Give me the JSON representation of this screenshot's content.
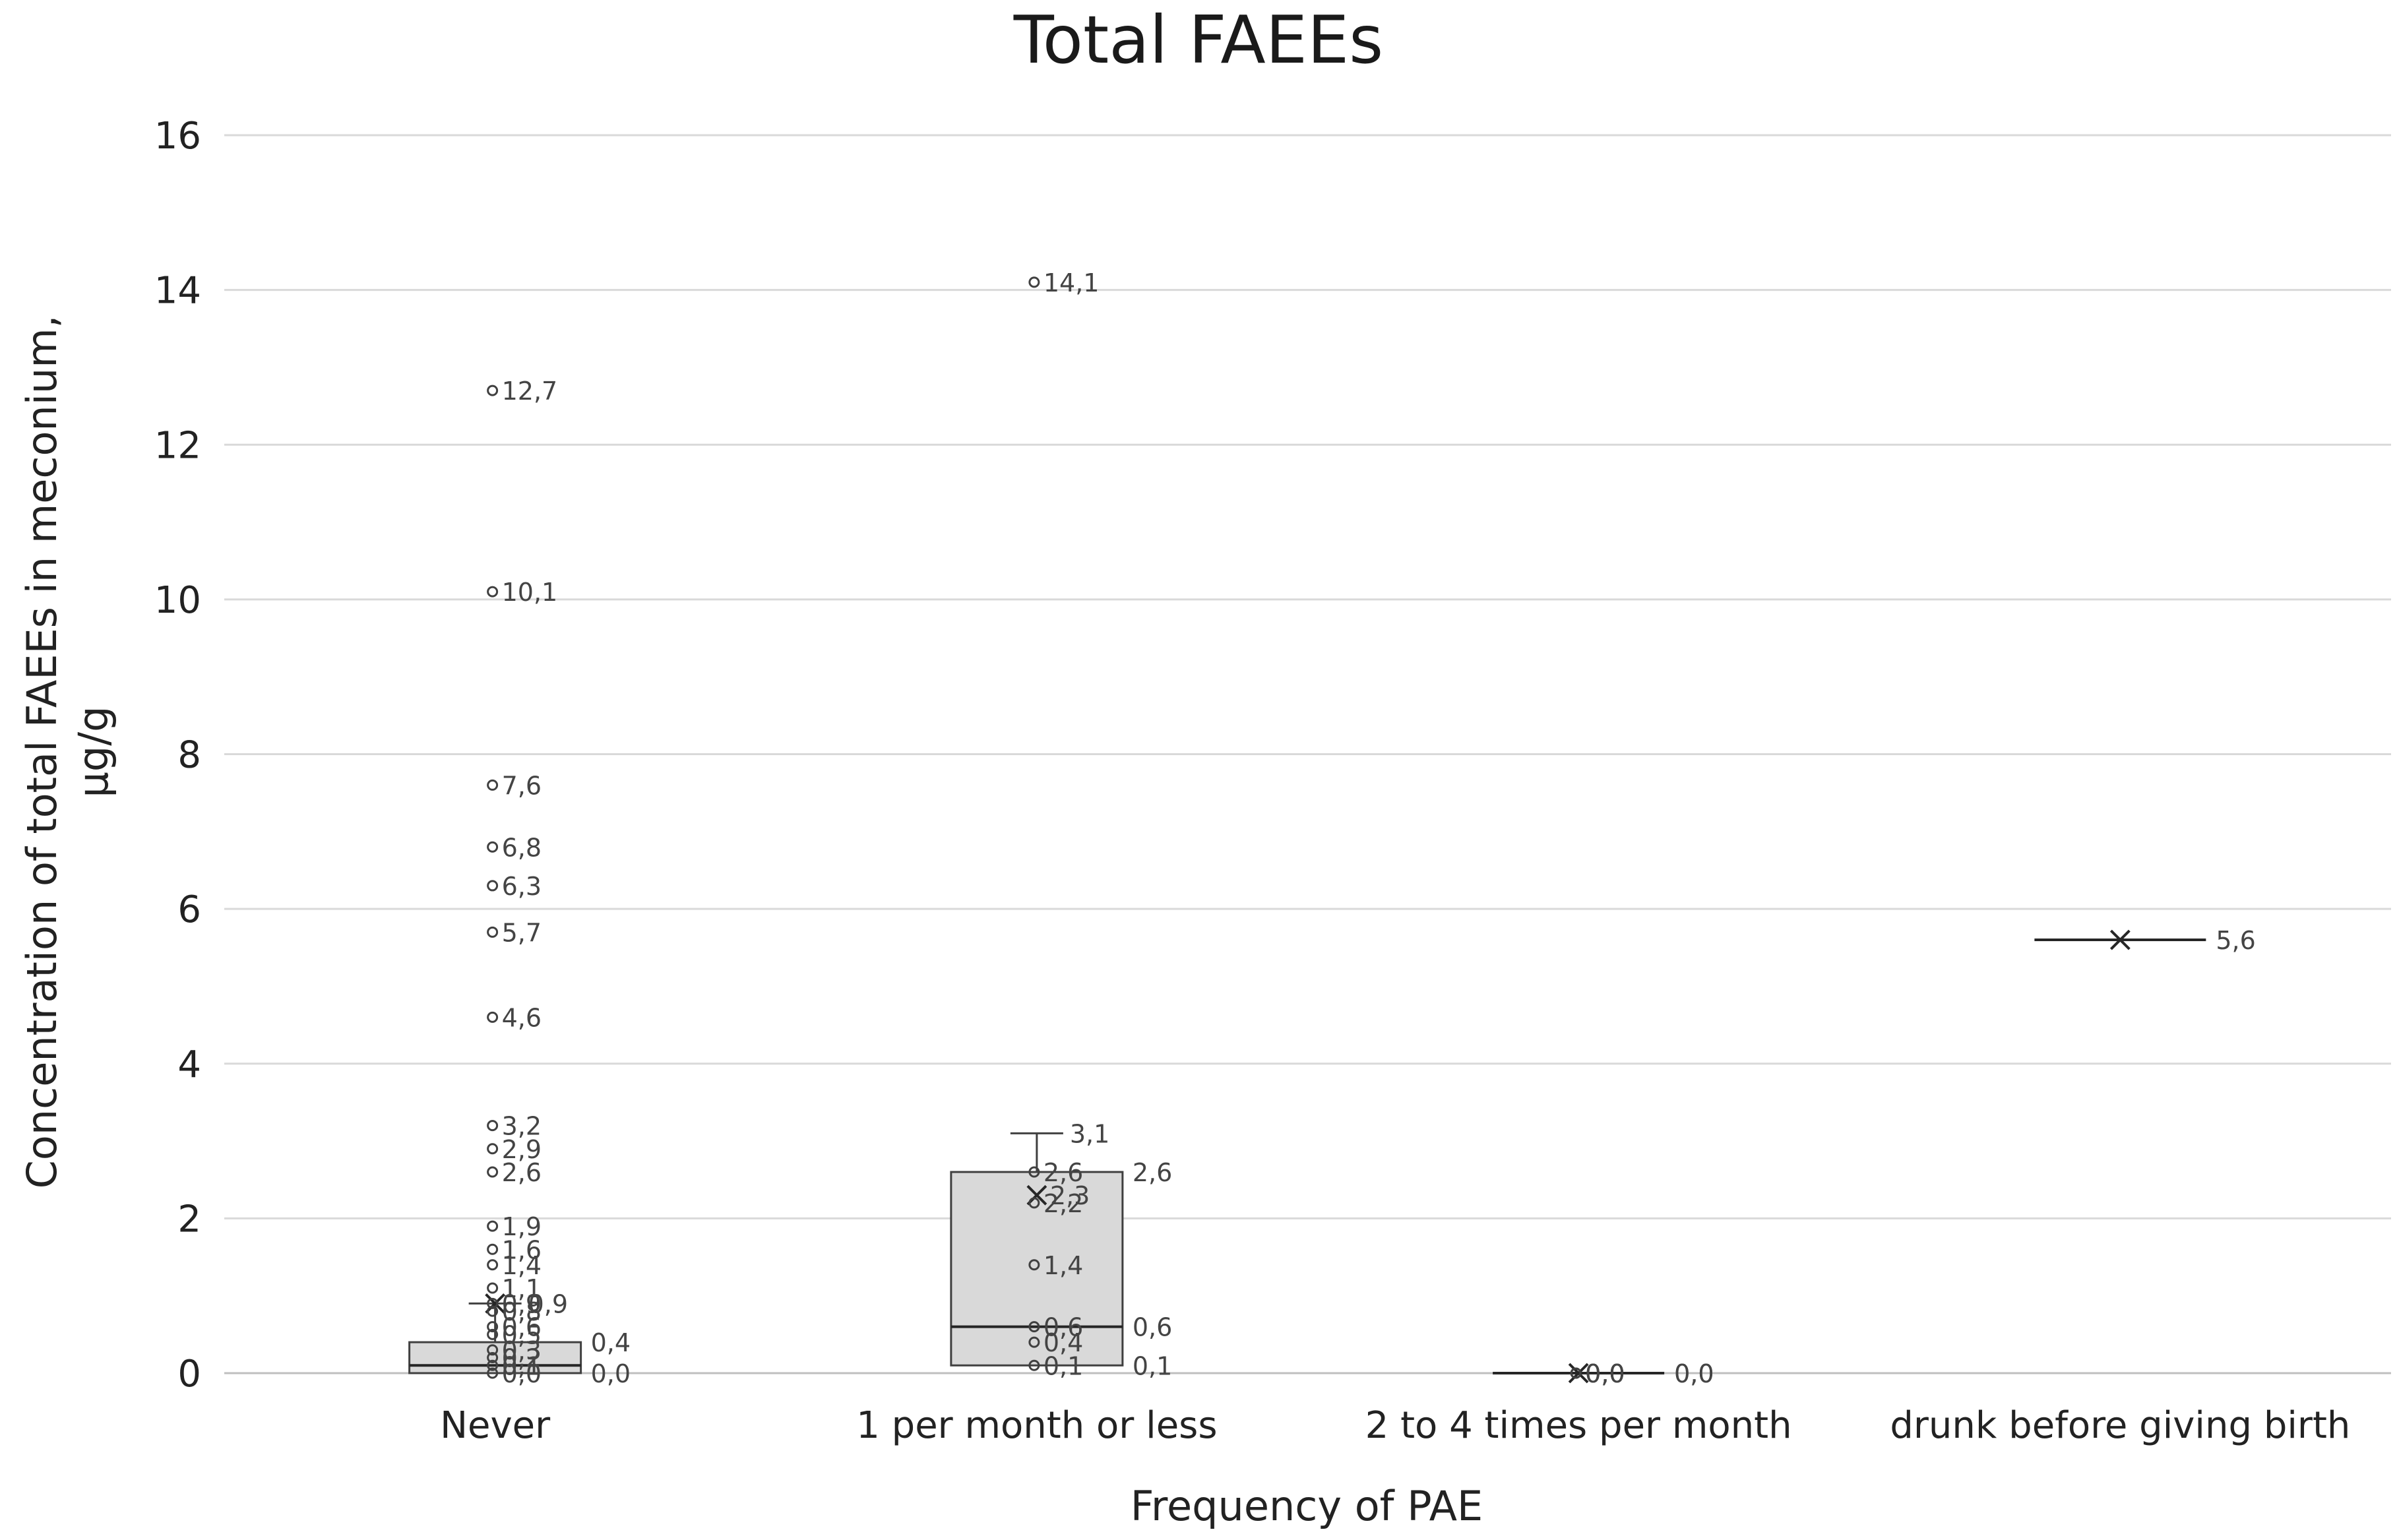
{
  "chart_data": {
    "type": "boxplot",
    "title": "Total FAEEs",
    "xlabel": "Frequency of PAE",
    "ylabel": "Concentration of total FAEEs in meconium, μg/g",
    "ylim": [
      0,
      16
    ],
    "yticks": [
      "0",
      "2",
      "4",
      "6",
      "8",
      "10",
      "12",
      "14",
      "16"
    ],
    "grid": true,
    "categories": [
      "Never",
      "1 per month or less",
      "2 to 4 times per month",
      "drunk before giving birth"
    ],
    "boxes": [
      {
        "category": "Never",
        "min": 0.0,
        "q1": 0.0,
        "median": 0.1,
        "q3": 0.4,
        "whisker_high": 0.9,
        "mean": 0.9,
        "labels": {
          "q3": "0,4",
          "min": "0,0",
          "whisker_high": "0,9",
          "q1": "0,0"
        },
        "outliers": [
          12.7,
          10.1,
          7.6,
          6.8,
          6.3,
          5.7,
          4.6,
          3.2,
          2.9,
          2.6,
          1.9,
          1.6,
          1.4,
          1.1,
          0.9,
          0.8,
          0.6,
          0.5,
          0.3,
          0.2,
          0.1,
          0.0
        ],
        "outlier_labels": [
          "12,7",
          "10,1",
          "7,6",
          "6,8",
          "6,3",
          "5,7",
          "4,6",
          "3,2",
          "2,9",
          "2,6",
          "1,9",
          "1,6",
          "1,4",
          "1,1",
          "0,9",
          "0,8",
          "0,6",
          "0,5",
          "0,3",
          "0,2",
          "0,1",
          "0,0"
        ]
      },
      {
        "category": "1 per month or less",
        "min": 0.1,
        "q1": 0.1,
        "median": 0.6,
        "q3": 2.6,
        "whisker_high": 3.1,
        "mean": 2.3,
        "labels": {
          "whisker_high": "3,1",
          "q3": "2,6",
          "median": "0,6",
          "min": "0,1",
          "mean": "2,3"
        },
        "outliers": [
          14.1,
          2.6,
          2.2,
          1.4,
          0.6,
          0.4,
          0.1
        ],
        "outlier_labels": [
          "14,1",
          "2,6",
          "2,2",
          "1,4",
          "0,6",
          "0,4",
          "0,1"
        ]
      },
      {
        "category": "2 to 4 times per month",
        "min": 0.0,
        "q1": 0.0,
        "median": 0.0,
        "q3": 0.0,
        "whisker_high": 0.0,
        "mean": 0.0,
        "labels": {
          "median": "0,0",
          "min": "0,0"
        },
        "outliers": [
          0.0,
          0.0,
          0.0
        ],
        "outlier_labels": [
          "0,0",
          "0,0",
          "0,0"
        ]
      },
      {
        "category": "drunk before giving birth",
        "min": 5.6,
        "q1": 5.6,
        "median": 5.6,
        "q3": 5.6,
        "whisker_high": 5.6,
        "mean": 5.6,
        "labels": {
          "median": "5,6",
          "mean": "5,6"
        },
        "outliers": [],
        "outlier_labels": []
      }
    ]
  }
}
